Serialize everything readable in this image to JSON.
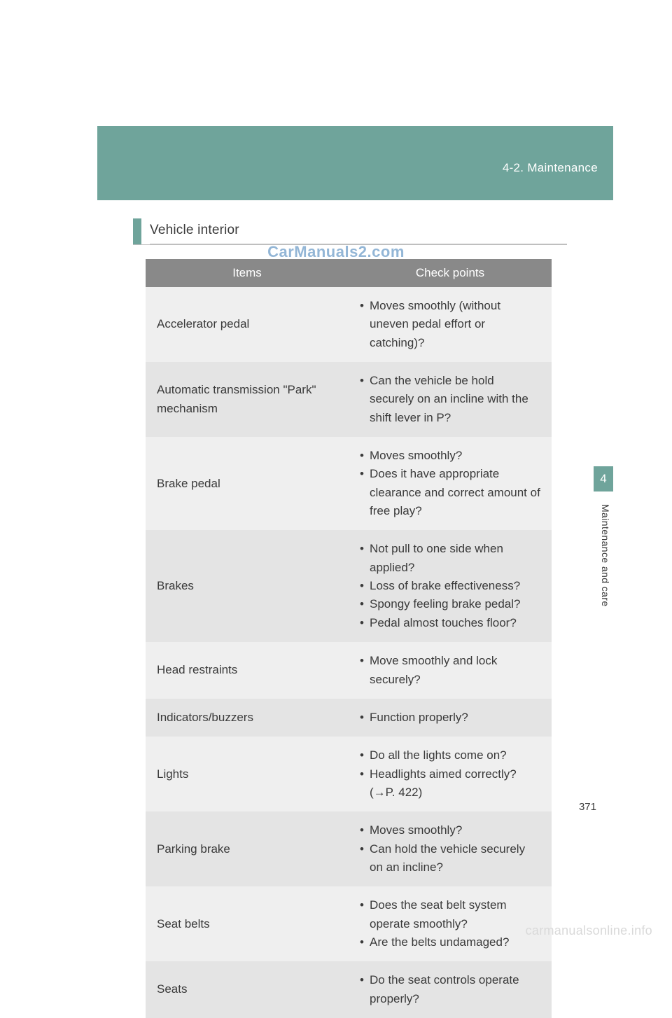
{
  "header": {
    "breadcrumb": "4-2. Maintenance",
    "band_color": "#6fa49b"
  },
  "section": {
    "title": "Vehicle interior"
  },
  "table": {
    "columns": [
      "Items",
      "Check points"
    ],
    "header_bg": "#898989",
    "row_bg_alt": [
      "#efefef",
      "#e4e4e4"
    ],
    "rows": [
      {
        "item": "Accelerator pedal",
        "points": [
          "Moves smoothly (without uneven pedal effort or catching)?"
        ]
      },
      {
        "item": "Automatic transmission \"Park\" mechanism",
        "points": [
          "Can the vehicle be hold securely on an incline with the shift lever in P?"
        ]
      },
      {
        "item": "Brake pedal",
        "points": [
          "Moves smoothly?",
          "Does it have appropriate clearance and correct amount of free play?"
        ]
      },
      {
        "item": "Brakes",
        "points": [
          "Not pull to one side when applied?",
          "Loss of brake effectiveness?",
          "Spongy feeling brake pedal?",
          "Pedal almost touches floor?"
        ]
      },
      {
        "item": "Head restraints",
        "points": [
          "Move smoothly and lock securely?"
        ]
      },
      {
        "item": "Indicators/buzzers",
        "points": [
          "Function properly?"
        ]
      },
      {
        "item": "Lights",
        "points": [
          "Do all the lights come on?",
          "Headlights aimed correctly? (→P. 422)"
        ]
      },
      {
        "item": "Parking brake",
        "points": [
          "Moves smoothly?",
          "Can hold the vehicle securely on an incline?"
        ]
      },
      {
        "item": "Seat belts",
        "points": [
          "Does the seat belt system operate smoothly?",
          "Are the belts undamaged?"
        ]
      },
      {
        "item": "Seats",
        "points": [
          "Do the seat controls operate properly?"
        ]
      }
    ]
  },
  "watermark": "CarManuals2.com",
  "side": {
    "tab_number": "4",
    "tab_bg": "#6fa49b",
    "label": "Maintenance and care"
  },
  "page_number": "371",
  "footer_watermark": "carmanualsonline.info",
  "colors": {
    "text": "#3a3a3a",
    "bg": "#ffffff",
    "footer_wm": "#d9d9d9"
  }
}
